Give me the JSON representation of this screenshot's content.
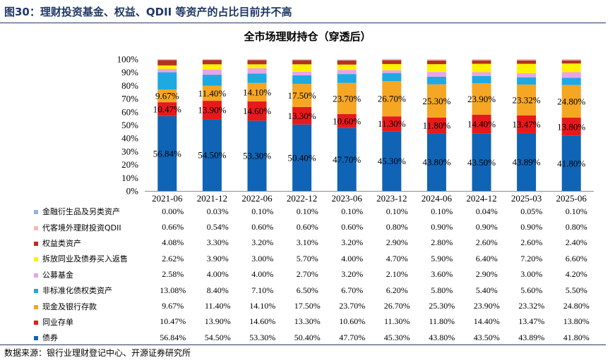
{
  "figure_title": "图30：理财投资基金、权益、QDII 等资产的占比目前并不高",
  "source": "数据来源：银行业理财登记中心、开源证券研究所",
  "chart_data": {
    "type": "bar",
    "stacked": true,
    "title": "全市场理财持仓（穿透后）",
    "xlabel": "",
    "ylabel": "",
    "ylim": [
      0,
      100
    ],
    "yticks": [
      "0%",
      "10%",
      "20%",
      "30%",
      "40%",
      "50%",
      "60%",
      "70%",
      "80%",
      "90%",
      "100%"
    ],
    "categories": [
      "2021-06",
      "2021-12",
      "2022-06",
      "2022-12",
      "2023-06",
      "2023-12",
      "2024-06",
      "2024-12",
      "2025-03",
      "2025-06"
    ],
    "series": [
      {
        "name": "债券",
        "color": "#0f64b5",
        "values": [
          56.84,
          54.5,
          53.3,
          50.4,
          47.7,
          45.3,
          43.8,
          43.5,
          43.89,
          41.8
        ],
        "labels": [
          "56.84%",
          "54.50%",
          "53.30%",
          "50.40%",
          "47.70%",
          "45.30%",
          "43.80%",
          "43.50%",
          "43.89%",
          "41.80%"
        ]
      },
      {
        "name": "同业存单",
        "color": "#e8191b",
        "values": [
          10.47,
          13.9,
          14.6,
          13.3,
          10.6,
          11.3,
          11.8,
          14.4,
          13.47,
          13.8
        ],
        "labels": [
          "10.47%",
          "13.90%",
          "14.60%",
          "13.30%",
          "10.60%",
          "11.30%",
          "11.80%",
          "14.40%",
          "13.47%",
          "13.80%"
        ]
      },
      {
        "name": "现金及银行存款",
        "color": "#f5a623",
        "values": [
          9.67,
          11.4,
          14.1,
          17.5,
          23.7,
          26.7,
          25.3,
          23.9,
          23.32,
          24.8
        ],
        "labels": [
          "9.67%",
          "11.40%",
          "14.10%",
          "17.50%",
          "23.70%",
          "26.70%",
          "25.30%",
          "23.90%",
          "23.32%",
          "24.80%"
        ]
      },
      {
        "name": "非标准化债权类资产",
        "color": "#1fa9e1",
        "values": [
          13.08,
          8.4,
          7.1,
          6.5,
          6.7,
          6.2,
          5.8,
          5.4,
          5.6,
          5.5
        ],
        "labels": [
          "13.08%",
          "8.40%",
          "7.10%",
          "6.50%",
          "6.70%",
          "6.20%",
          "5.80%",
          "5.40%",
          "5.60%",
          "5.50%"
        ]
      },
      {
        "name": "公募基金",
        "color": "#e9a3e8",
        "values": [
          2.58,
          4.0,
          4.0,
          2.7,
          3.2,
          2.1,
          3.6,
          2.9,
          3.0,
          4.2
        ],
        "labels": [
          "2.58%",
          "4.00%",
          "4.00%",
          "2.70%",
          "3.20%",
          "2.10%",
          "3.60%",
          "2.90%",
          "3.00%",
          "4.20%"
        ]
      },
      {
        "name": "拆放同业及债券买入返售",
        "color": "#fff200",
        "values": [
          2.62,
          3.9,
          3.0,
          5.7,
          4.0,
          4.7,
          5.9,
          6.4,
          7.2,
          6.6
        ],
        "labels": [
          "2.62%",
          "3.90%",
          "3.00%",
          "5.70%",
          "4.00%",
          "4.70%",
          "5.90%",
          "6.40%",
          "7.20%",
          "6.60%"
        ]
      },
      {
        "name": "权益类资产",
        "color": "#b5321e",
        "values": [
          4.08,
          3.3,
          3.2,
          3.1,
          3.2,
          2.9,
          2.8,
          2.6,
          2.6,
          2.4
        ],
        "labels": [
          "4.08%",
          "3.30%",
          "3.20%",
          "3.10%",
          "3.20%",
          "2.90%",
          "2.80%",
          "2.60%",
          "2.60%",
          "2.40%"
        ]
      },
      {
        "name": "代客境外理财投资QDII",
        "color": "#f4b8b8",
        "values": [
          0.66,
          0.54,
          0.6,
          0.6,
          0.6,
          0.8,
          0.9,
          0.9,
          0.9,
          0.8
        ],
        "labels": [
          "0.66%",
          "0.54%",
          "0.60%",
          "0.60%",
          "0.60%",
          "0.80%",
          "0.90%",
          "0.90%",
          "0.90%",
          "0.80%"
        ]
      },
      {
        "name": "金融衍生品及另类资产",
        "color": "#8fb4de",
        "values": [
          0.0,
          0.03,
          0.1,
          0.1,
          0.1,
          0.1,
          0.1,
          0.04,
          0.05,
          0.1
        ],
        "labels": [
          "0.00%",
          "0.03%",
          "0.10%",
          "0.10%",
          "0.10%",
          "0.10%",
          "0.10%",
          "0.04%",
          "0.05%",
          "0.10%"
        ]
      }
    ],
    "bar_labels_shown_for": [
      "债券",
      "同业存单",
      "现金及银行存款"
    ],
    "table_row_order": [
      "金融衍生品及另类资产",
      "代客境外理财投资QDII",
      "权益类资产",
      "拆放同业及债券买入返售",
      "公募基金",
      "非标准化债权类资产",
      "现金及银行存款",
      "同业存单",
      "债券"
    ]
  }
}
